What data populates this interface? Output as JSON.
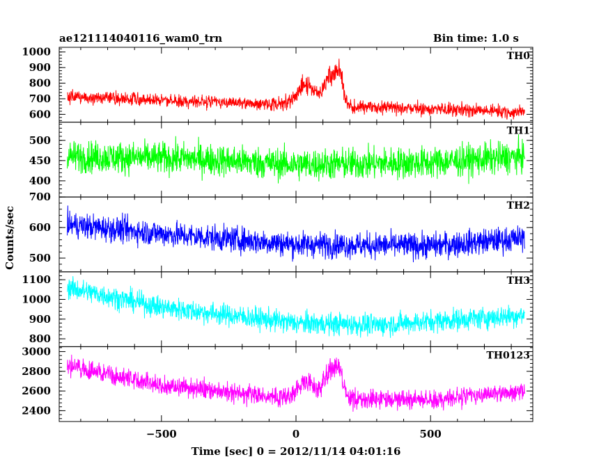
{
  "header": {
    "title": "ae121114040116_wam0_trn",
    "bin_time": "Bin time: 1.0 s"
  },
  "chart_data": {
    "type": "line",
    "xlabel": "Time [sec] 0 = 2012/11/14 04:01:16",
    "ylabel": "Counts/sec",
    "xlim": [
      -880,
      880
    ],
    "x_ticks": [
      -500,
      0,
      500
    ],
    "x_tick_labels": [
      "−500",
      "0",
      "500"
    ],
    "x_range_data": [
      -850,
      850
    ],
    "panels": [
      {
        "name": "TH0",
        "color": "#ff0000",
        "ylim": [
          550,
          1030
        ],
        "ticks": [
          600,
          700,
          800,
          900,
          1000
        ],
        "tick_labels": [
          "600",
          "700",
          "800",
          "900",
          "1000"
        ],
        "baseline": [
          [
            -850,
            715
          ],
          [
            -500,
            690
          ],
          [
            0,
            660
          ],
          [
            500,
            635
          ],
          [
            850,
            615
          ]
        ],
        "noise": 30,
        "features": [
          {
            "center": 40,
            "width": 35,
            "height": 130
          },
          {
            "center": 125,
            "width": 20,
            "height": 170
          },
          {
            "center": 160,
            "width": 15,
            "height": 200
          }
        ]
      },
      {
        "name": "TH1",
        "color": "#00ff00",
        "ylim": [
          360,
          545
        ],
        "ticks": [
          400,
          450,
          500
        ],
        "tick_labels": [
          "400",
          "450",
          "500"
        ],
        "baseline": [
          [
            -850,
            460
          ],
          [
            -400,
            455
          ],
          [
            0,
            440
          ],
          [
            500,
            445
          ],
          [
            850,
            460
          ]
        ],
        "noise": 28,
        "features": []
      },
      {
        "name": "TH2",
        "color": "#0000ff",
        "ylim": [
          455,
          700
        ],
        "ticks": [
          500,
          600,
          700
        ],
        "tick_labels": [
          "500",
          "600",
          "700"
        ],
        "baseline": [
          [
            -850,
            610
          ],
          [
            -500,
            580
          ],
          [
            0,
            545
          ],
          [
            500,
            540
          ],
          [
            850,
            565
          ]
        ],
        "noise": 30,
        "features": []
      },
      {
        "name": "TH3",
        "color": "#00ffff",
        "ylim": [
          760,
          1140
        ],
        "ticks": [
          800,
          900,
          1000,
          1100
        ],
        "tick_labels": [
          "800",
          "900",
          "1000",
          "1100"
        ],
        "baseline": [
          [
            -850,
            1060
          ],
          [
            -500,
            960
          ],
          [
            0,
            880
          ],
          [
            300,
            870
          ],
          [
            850,
            920
          ]
        ],
        "noise": 40,
        "features": []
      },
      {
        "name": "TH0123",
        "color": "#ff00ff",
        "ylim": [
          2290,
          3050
        ],
        "ticks": [
          2400,
          2600,
          2800,
          3000
        ],
        "tick_labels": [
          "2400",
          "2600",
          "2800",
          "3000"
        ],
        "baseline": [
          [
            -850,
            2860
          ],
          [
            -500,
            2660
          ],
          [
            0,
            2520
          ],
          [
            500,
            2510
          ],
          [
            850,
            2600
          ]
        ],
        "noise": 70,
        "features": [
          {
            "center": 40,
            "width": 35,
            "height": 170
          },
          {
            "center": 125,
            "width": 20,
            "height": 260
          },
          {
            "center": 160,
            "width": 15,
            "height": 280
          }
        ]
      }
    ]
  }
}
